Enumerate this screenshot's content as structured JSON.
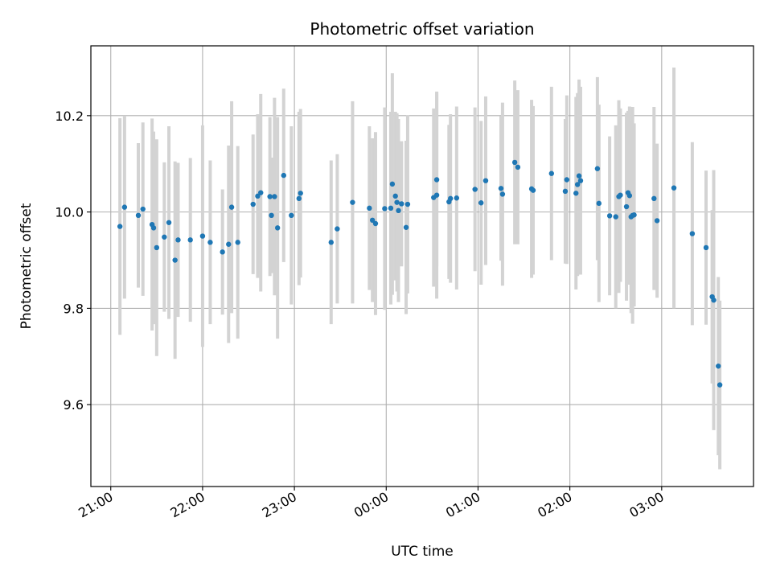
{
  "chart_data": {
    "type": "scatter",
    "title": "Photometric offset variation",
    "xlabel": "UTC time",
    "ylabel": "Photometric offset",
    "grid": true,
    "xlim": [
      "20:47",
      "04:00"
    ],
    "ylim": [
      9.43,
      10.345
    ],
    "x_ticks": [
      "21:00",
      "22:00",
      "23:00",
      "00:00",
      "01:00",
      "02:00",
      "03:00"
    ],
    "y_ticks": [
      "9.6",
      "9.8",
      "10.0",
      "10.2"
    ],
    "colors": {
      "points": "#1f77b4",
      "errorbars": "#d3d3d3",
      "grid": "#b0b0b0"
    },
    "series": [
      {
        "x": [
          "21:06",
          "21:09",
          "21:18",
          "21:21",
          "21:27",
          "21:28",
          "21:30",
          "21:35",
          "21:38",
          "21:42",
          "21:44",
          "21:52",
          "22:00",
          "22:05",
          "22:13",
          "22:17",
          "22:19",
          "22:23",
          "22:33",
          "22:36",
          "22:38",
          "22:44",
          "22:45",
          "22:47",
          "22:49",
          "22:53",
          "22:58",
          "23:03",
          "23:04",
          "23:24",
          "23:28",
          "23:38",
          "23:49",
          "23:51",
          "23:53",
          "23:59",
          "00:03",
          "00:04",
          "00:06",
          "00:07",
          "00:08",
          "00:10",
          "00:13",
          "00:14",
          "00:31",
          "00:33",
          "00:33",
          "00:41",
          "00:42",
          "00:46",
          "00:58",
          "01:02",
          "01:05",
          "01:15",
          "01:16",
          "01:24",
          "01:26",
          "01:35",
          "01:36",
          "01:48",
          "01:57",
          "01:58",
          "02:04",
          "02:05",
          "02:06",
          "02:07",
          "02:18",
          "02:19",
          "02:26",
          "02:30",
          "02:32",
          "02:33",
          "02:37",
          "02:38",
          "02:39",
          "02:40",
          "02:41",
          "02:42",
          "02:55",
          "02:57",
          "03:08",
          "03:20",
          "03:29",
          "03:33",
          "03:34",
          "03:37",
          "03:38"
        ],
        "y": [
          9.97,
          10.01,
          9.993,
          10.006,
          9.974,
          9.967,
          9.926,
          9.948,
          9.978,
          9.9,
          9.942,
          9.942,
          9.95,
          9.937,
          9.917,
          9.933,
          10.01,
          9.937,
          10.016,
          10.033,
          10.04,
          10.032,
          9.993,
          10.032,
          9.967,
          10.076,
          9.993,
          10.028,
          10.039,
          9.937,
          9.965,
          10.02,
          10.008,
          9.983,
          9.976,
          10.007,
          10.008,
          10.058,
          10.033,
          10.02,
          10.003,
          10.017,
          9.968,
          10.016,
          10.03,
          10.067,
          10.035,
          10.021,
          10.028,
          10.029,
          10.047,
          10.019,
          10.065,
          10.049,
          10.037,
          10.103,
          10.093,
          10.048,
          10.045,
          10.08,
          10.043,
          10.067,
          10.039,
          10.057,
          10.075,
          10.065,
          10.09,
          10.018,
          9.992,
          9.99,
          10.032,
          10.035,
          10.011,
          10.04,
          10.034,
          9.99,
          9.993,
          9.994,
          10.028,
          9.982,
          10.05,
          9.955,
          9.926,
          9.824,
          9.817,
          9.68,
          9.641
        ],
        "error": [
          0.225,
          0.19,
          0.15,
          0.18,
          0.22,
          0.2,
          0.225,
          0.155,
          0.2,
          0.205,
          0.16,
          0.17,
          0.23,
          0.17,
          0.13,
          0.205,
          0.22,
          0.2,
          0.145,
          0.17,
          0.205,
          0.165,
          0.12,
          0.205,
          0.23,
          0.18,
          0.185,
          0.18,
          0.175,
          0.17,
          0.155,
          0.21,
          0.17,
          0.17,
          0.19,
          0.21,
          0.2,
          0.23,
          0.175,
          0.185,
          0.19,
          0.13,
          0.18,
          0.185,
          0.185,
          0.18,
          0.215,
          0.16,
          0.175,
          0.19,
          0.17,
          0.17,
          0.175,
          0.15,
          0.19,
          0.17,
          0.16,
          0.185,
          0.175,
          0.18,
          0.15,
          0.175,
          0.2,
          0.19,
          0.2,
          0.195,
          0.19,
          0.205,
          0.165,
          0.19,
          0.2,
          0.18,
          0.195,
          0.17,
          0.185,
          0.2,
          0.225,
          0.19,
          0.19,
          0.16,
          0.25,
          0.19,
          0.16,
          0.18,
          0.27,
          0.185,
          0.175
        ]
      }
    ]
  }
}
